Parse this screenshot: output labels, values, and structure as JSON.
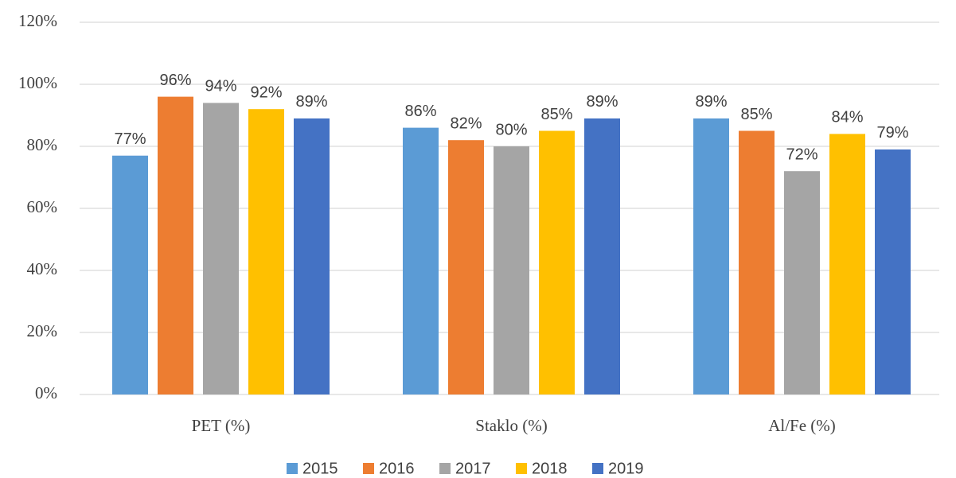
{
  "chart_data": {
    "type": "bar",
    "categories": [
      "PET (%)",
      "Staklo (%)",
      "Al/Fe (%)"
    ],
    "series": [
      {
        "name": "2015",
        "color": "#5b9bd5",
        "values": [
          77,
          86,
          89
        ],
        "value_labels": [
          "77%",
          "86%",
          "89%"
        ]
      },
      {
        "name": "2016",
        "color": "#ed7d31",
        "values": [
          96,
          82,
          85
        ],
        "value_labels": [
          "96%",
          "82%",
          "85%"
        ]
      },
      {
        "name": "2017",
        "color": "#a5a5a5",
        "values": [
          94,
          80,
          72
        ],
        "value_labels": [
          "94%",
          "80%",
          "72%"
        ]
      },
      {
        "name": "2018",
        "color": "#ffc000",
        "values": [
          92,
          85,
          84
        ],
        "value_labels": [
          "92%",
          "85%",
          "84%"
        ]
      },
      {
        "name": "2019",
        "color": "#4472c4",
        "values": [
          89,
          89,
          79
        ],
        "value_labels": [
          "89%",
          "89%",
          "79%"
        ]
      }
    ],
    "ylim": [
      0,
      120
    ],
    "yticks": [
      {
        "value": 0,
        "label": "0%"
      },
      {
        "value": 20,
        "label": "20%"
      },
      {
        "value": 40,
        "label": "40%"
      },
      {
        "value": 60,
        "label": "60%"
      },
      {
        "value": 80,
        "label": "80%"
      },
      {
        "value": 100,
        "label": "100%"
      },
      {
        "value": 120,
        "label": "120%"
      }
    ],
    "grid": true,
    "legend": "bottom"
  }
}
